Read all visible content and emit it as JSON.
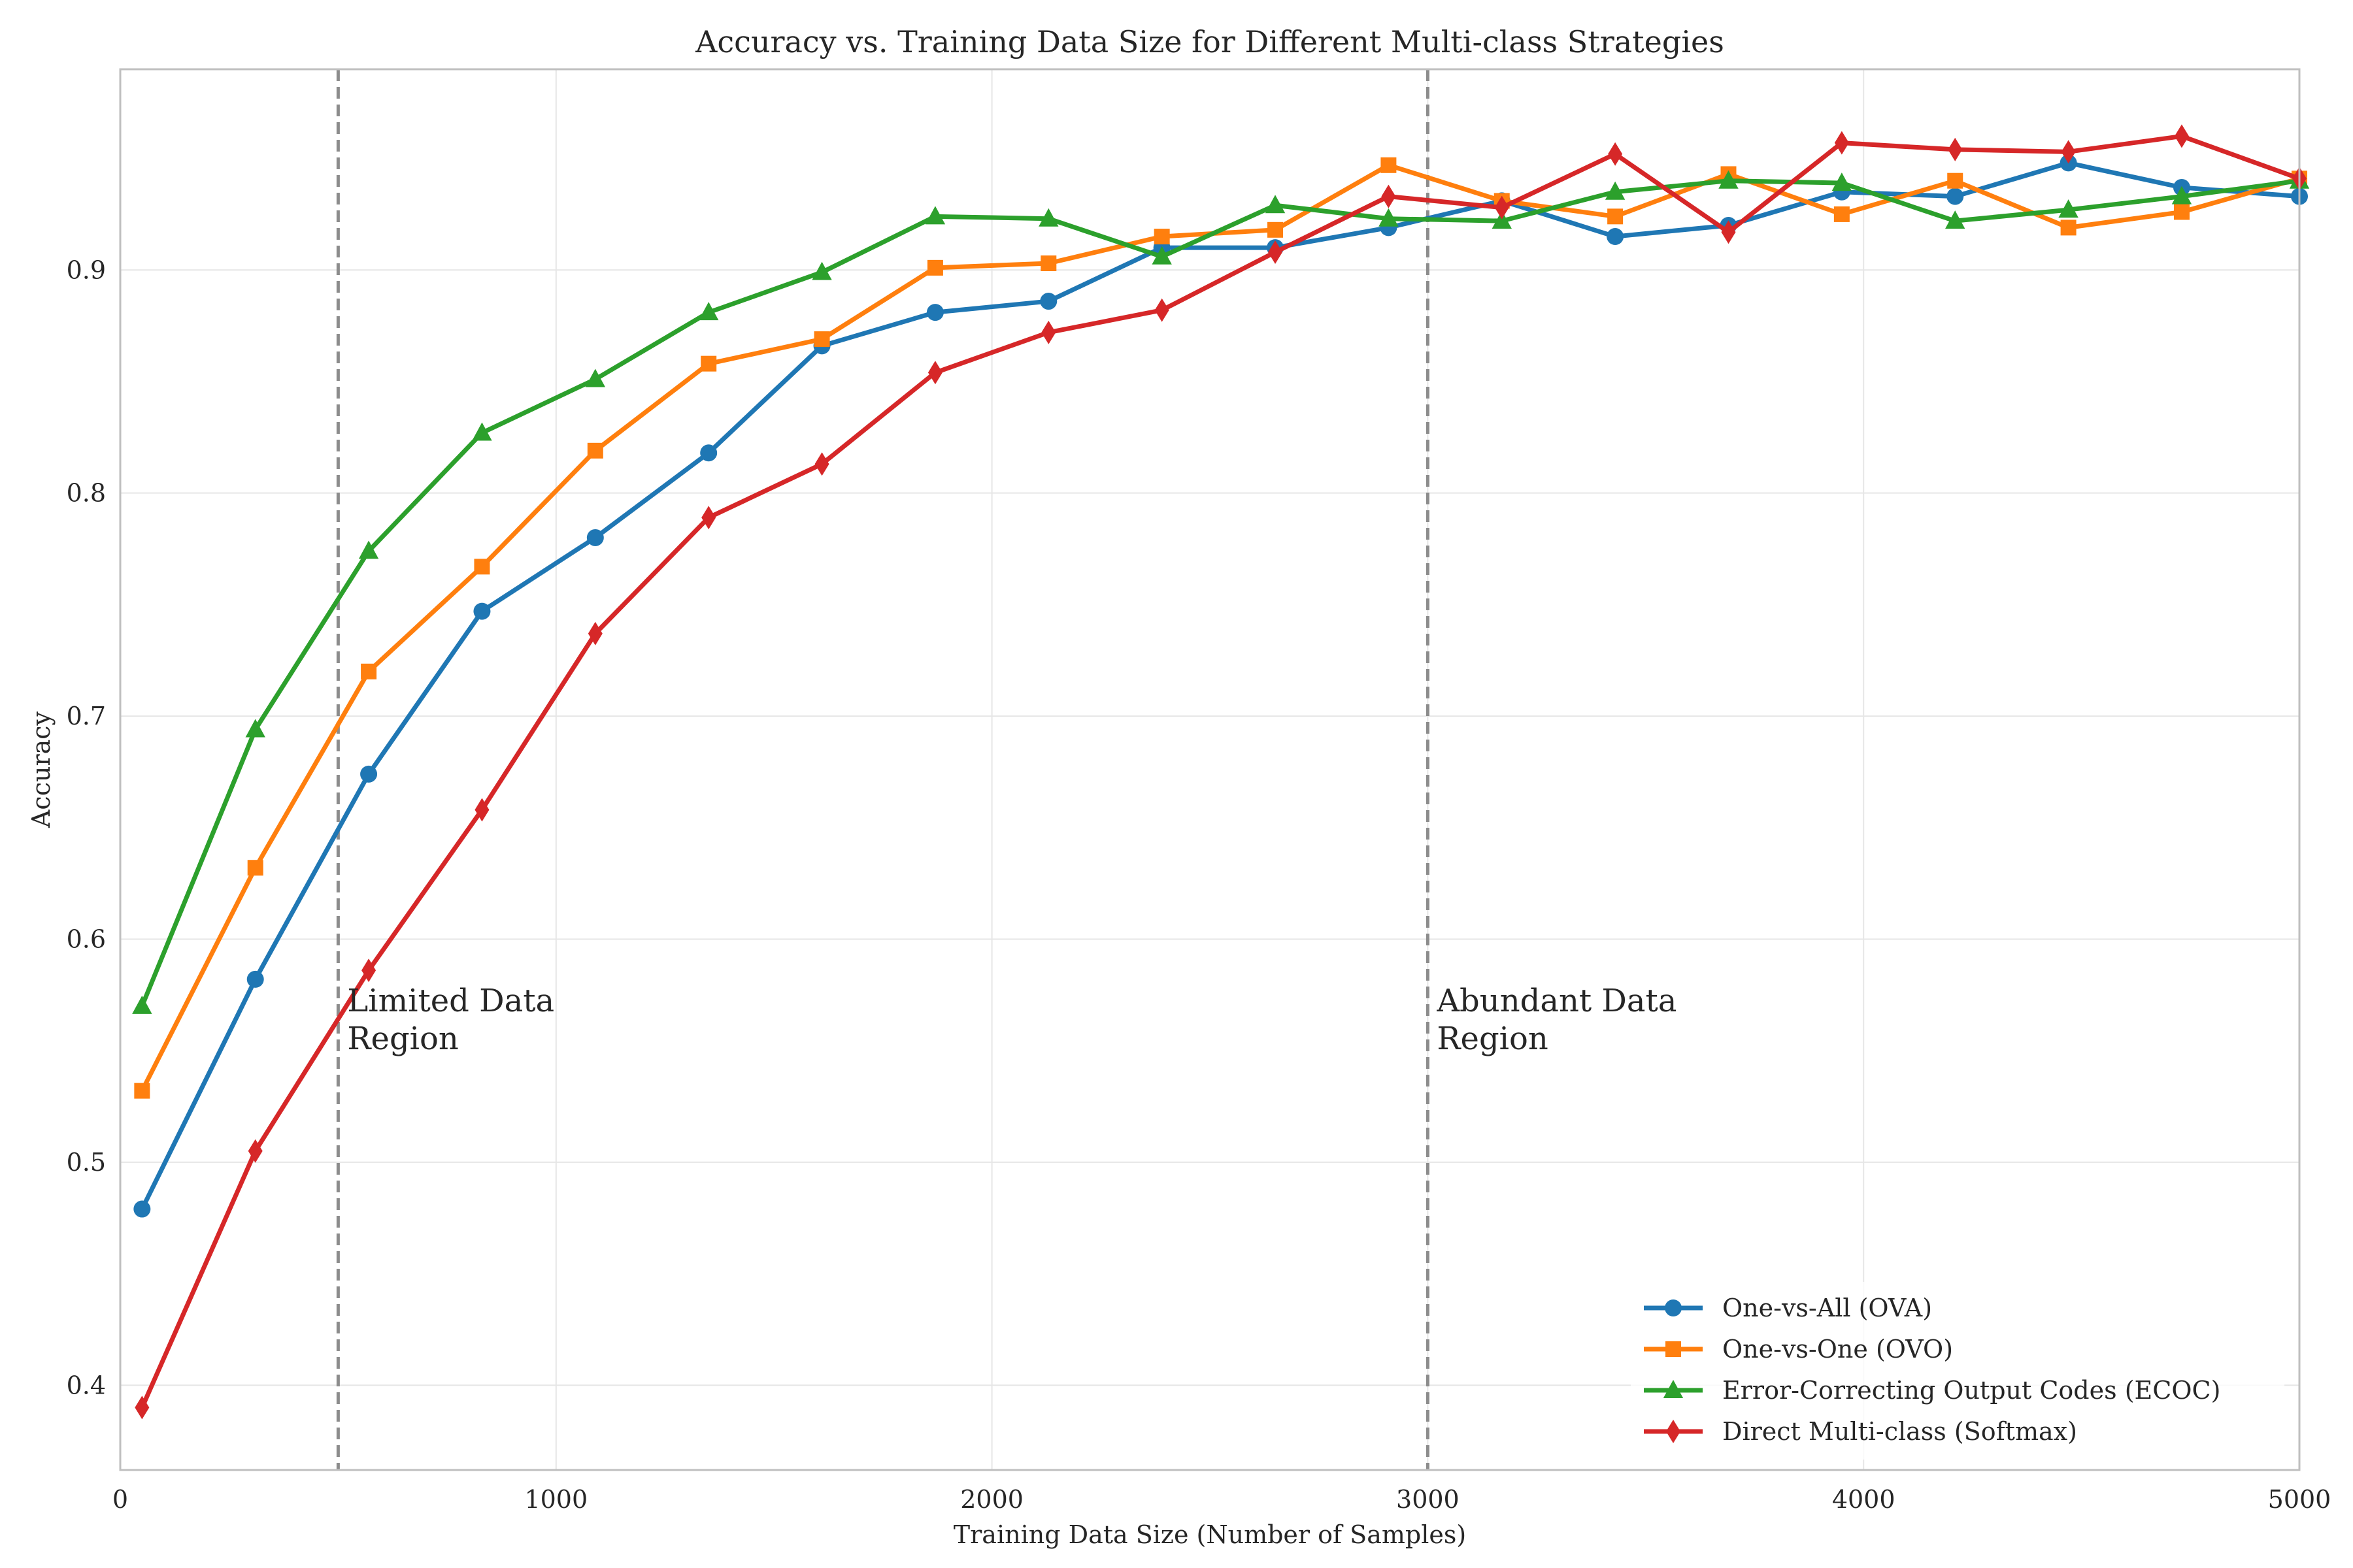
{
  "chart_data": {
    "type": "line",
    "title": "Accuracy vs. Training Data Size for Different Multi-class Strategies",
    "xlabel": "Training Data Size (Number of Samples)",
    "ylabel": "Accuracy",
    "xlim": [
      0,
      5000
    ],
    "ylim": [
      0.362,
      0.99
    ],
    "xticks": [
      0,
      1000,
      2000,
      3000,
      4000,
      5000
    ],
    "xtick_labels": [
      "0",
      "1000",
      "2000",
      "3000",
      "4000",
      "5000"
    ],
    "yticks": [
      0.4,
      0.5,
      0.6,
      0.7,
      0.8,
      0.9
    ],
    "ytick_labels": [
      "0.4",
      "0.5",
      "0.6",
      "0.7",
      "0.8",
      "0.9"
    ],
    "grid": true,
    "legend_position": "bottom-right",
    "x": [
      50,
      310,
      570,
      830,
      1090,
      1350,
      1610,
      1870,
      2130,
      2390,
      2650,
      2910,
      3170,
      3430,
      3690,
      3950,
      4210,
      4470,
      4730,
      5000
    ],
    "series": [
      {
        "name": "One-vs-All (OVA)",
        "color": "#1f77b4",
        "marker": "circle",
        "values": [
          0.479,
          0.582,
          0.674,
          0.747,
          0.78,
          0.818,
          0.866,
          0.881,
          0.886,
          0.91,
          0.91,
          0.919,
          0.931,
          0.915,
          0.92,
          0.935,
          0.933,
          0.948,
          0.937,
          0.933
        ]
      },
      {
        "name": "One-vs-One (OVO)",
        "color": "#ff7f0e",
        "marker": "square",
        "values": [
          0.532,
          0.632,
          0.72,
          0.767,
          0.819,
          0.858,
          0.869,
          0.901,
          0.903,
          0.915,
          0.918,
          0.947,
          0.931,
          0.924,
          0.943,
          0.925,
          0.94,
          0.919,
          0.926,
          0.941
        ]
      },
      {
        "name": "Error-Correcting Output Codes (ECOC)",
        "color": "#2ca02c",
        "marker": "triangle",
        "values": [
          0.57,
          0.694,
          0.774,
          0.827,
          0.851,
          0.881,
          0.899,
          0.924,
          0.923,
          0.906,
          0.929,
          0.923,
          0.922,
          0.935,
          0.94,
          0.939,
          0.922,
          0.927,
          0.933,
          0.94
        ]
      },
      {
        "name": "Direct Multi-class (Softmax)",
        "color": "#d62728",
        "marker": "diamond",
        "values": [
          0.39,
          0.505,
          0.586,
          0.658,
          0.737,
          0.789,
          0.813,
          0.854,
          0.872,
          0.882,
          0.908,
          0.933,
          0.928,
          0.952,
          0.917,
          0.957,
          0.954,
          0.953,
          0.96,
          0.941
        ]
      }
    ],
    "reference_lines": [
      {
        "x": 500,
        "label": "Limited Data\nRegion",
        "style": "dashed",
        "color": "#8c8c8c"
      },
      {
        "x": 3000,
        "label": "Abundant Data\nRegion",
        "style": "dashed",
        "color": "#8c8c8c"
      }
    ]
  }
}
